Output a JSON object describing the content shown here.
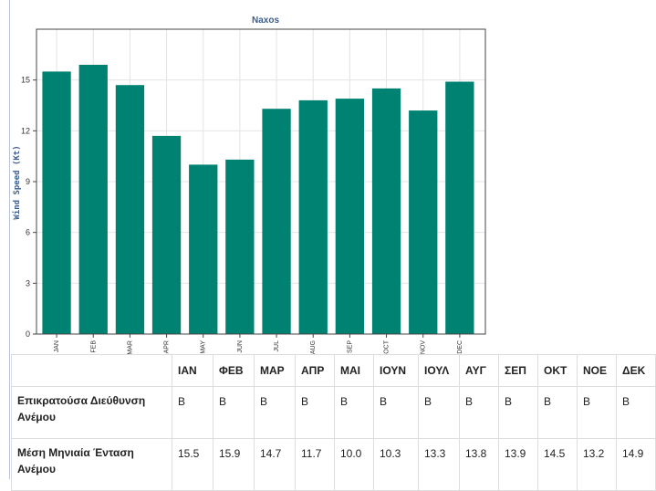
{
  "chart_data": {
    "type": "bar",
    "title": "Naxos",
    "ylabel": "Wind Speed (Kt)",
    "xlabel": "",
    "categories": [
      "JAN",
      "FEB",
      "MAR",
      "APR",
      "MAY",
      "JUN",
      "JUL",
      "AUG",
      "SEP",
      "OCT",
      "NOV",
      "DEC"
    ],
    "values": [
      15.5,
      15.9,
      14.7,
      11.7,
      10.0,
      10.3,
      13.3,
      13.8,
      13.9,
      14.5,
      13.2,
      14.9
    ],
    "ylim": [
      0,
      18
    ],
    "yticks": [
      "0",
      "3",
      "6",
      "9",
      "12",
      "15"
    ],
    "grid": true,
    "bar_color": "#008272"
  },
  "table": {
    "headers": [
      "",
      "ΙΑΝ",
      "ΦΕΒ",
      "ΜΑΡ",
      "ΑΠΡ",
      "ΜΑΙ",
      "ΙΟΥΝ",
      "ΙΟΥΛ",
      "ΑΥΓ",
      "ΣΕΠ",
      "ΟΚΤ",
      "ΝΟΕ",
      "ΔΕΚ"
    ],
    "rows": [
      {
        "label": "Επικρατούσα Διεύθυνση Ανέμου",
        "values": [
          "Β",
          "Β",
          "Β",
          "Β",
          "Β",
          "Β",
          "Β",
          "Β",
          "Β",
          "Β",
          "Β",
          "Β"
        ]
      },
      {
        "label": "Μέση Μηνιαία Ένταση Ανέμου",
        "values": [
          "15.5",
          "15.9",
          "14.7",
          "11.7",
          "10.0",
          "10.3",
          "13.3",
          "13.8",
          "13.9",
          "14.5",
          "13.2",
          "14.9"
        ]
      }
    ]
  }
}
